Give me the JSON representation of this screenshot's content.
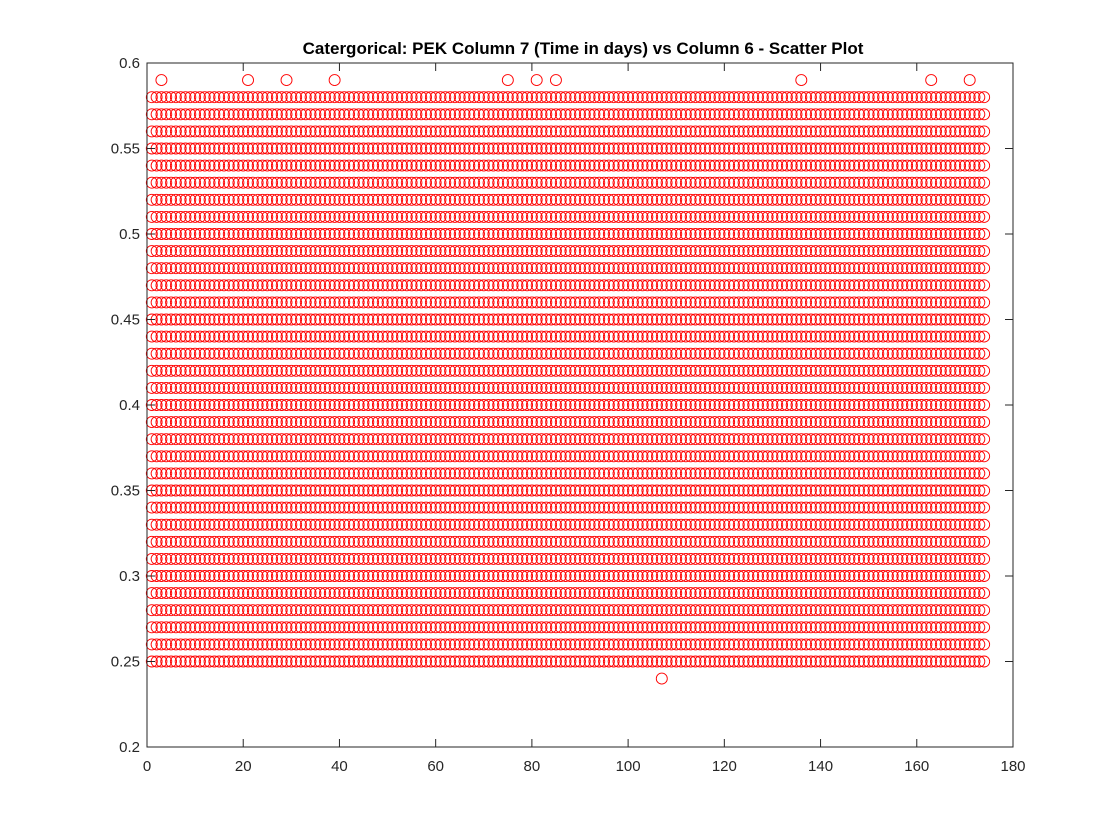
{
  "chart_data": {
    "type": "scatter",
    "title": "Catergorical: PEK Column 7 (Time in days) vs Column 6 - Scatter Plot",
    "xlabel": "",
    "ylabel": "",
    "xlim": [
      0,
      180
    ],
    "ylim": [
      0.2,
      0.6
    ],
    "x_ticks": [
      0,
      20,
      40,
      60,
      80,
      100,
      120,
      140,
      160,
      180
    ],
    "y_ticks": [
      0.2,
      0.25,
      0.3,
      0.35,
      0.4,
      0.45,
      0.5,
      0.55,
      0.6
    ],
    "x_tick_labels": [
      "0",
      "20",
      "40",
      "60",
      "80",
      "100",
      "120",
      "140",
      "160",
      "180"
    ],
    "y_tick_labels": [
      "0.2",
      "0.25",
      "0.3",
      "0.35",
      "0.4",
      "0.45",
      "0.5",
      "0.55",
      "0.6"
    ],
    "grid": false,
    "legend": "none",
    "marker": "open-circle",
    "marker_color": "#ff0000",
    "x_range_of_points": [
      1,
      174
    ],
    "y_levels_dense": [
      0.25,
      0.26,
      0.27,
      0.28,
      0.29,
      0.3,
      0.31,
      0.32,
      0.33,
      0.34,
      0.35,
      0.36,
      0.37,
      0.38,
      0.39,
      0.4,
      0.41,
      0.42,
      0.43,
      0.44,
      0.45,
      0.46,
      0.47,
      0.48,
      0.49,
      0.5,
      0.51,
      0.52,
      0.53,
      0.54,
      0.55,
      0.56,
      0.57,
      0.58
    ],
    "isolated_points": [
      {
        "x": 3,
        "y": 0.59
      },
      {
        "x": 21,
        "y": 0.59
      },
      {
        "x": 29,
        "y": 0.59
      },
      {
        "x": 39,
        "y": 0.59
      },
      {
        "x": 75,
        "y": 0.59
      },
      {
        "x": 81,
        "y": 0.59
      },
      {
        "x": 85,
        "y": 0.59
      },
      {
        "x": 136,
        "y": 0.59
      },
      {
        "x": 163,
        "y": 0.59
      },
      {
        "x": 171,
        "y": 0.59
      },
      {
        "x": 107,
        "y": 0.24
      }
    ]
  }
}
